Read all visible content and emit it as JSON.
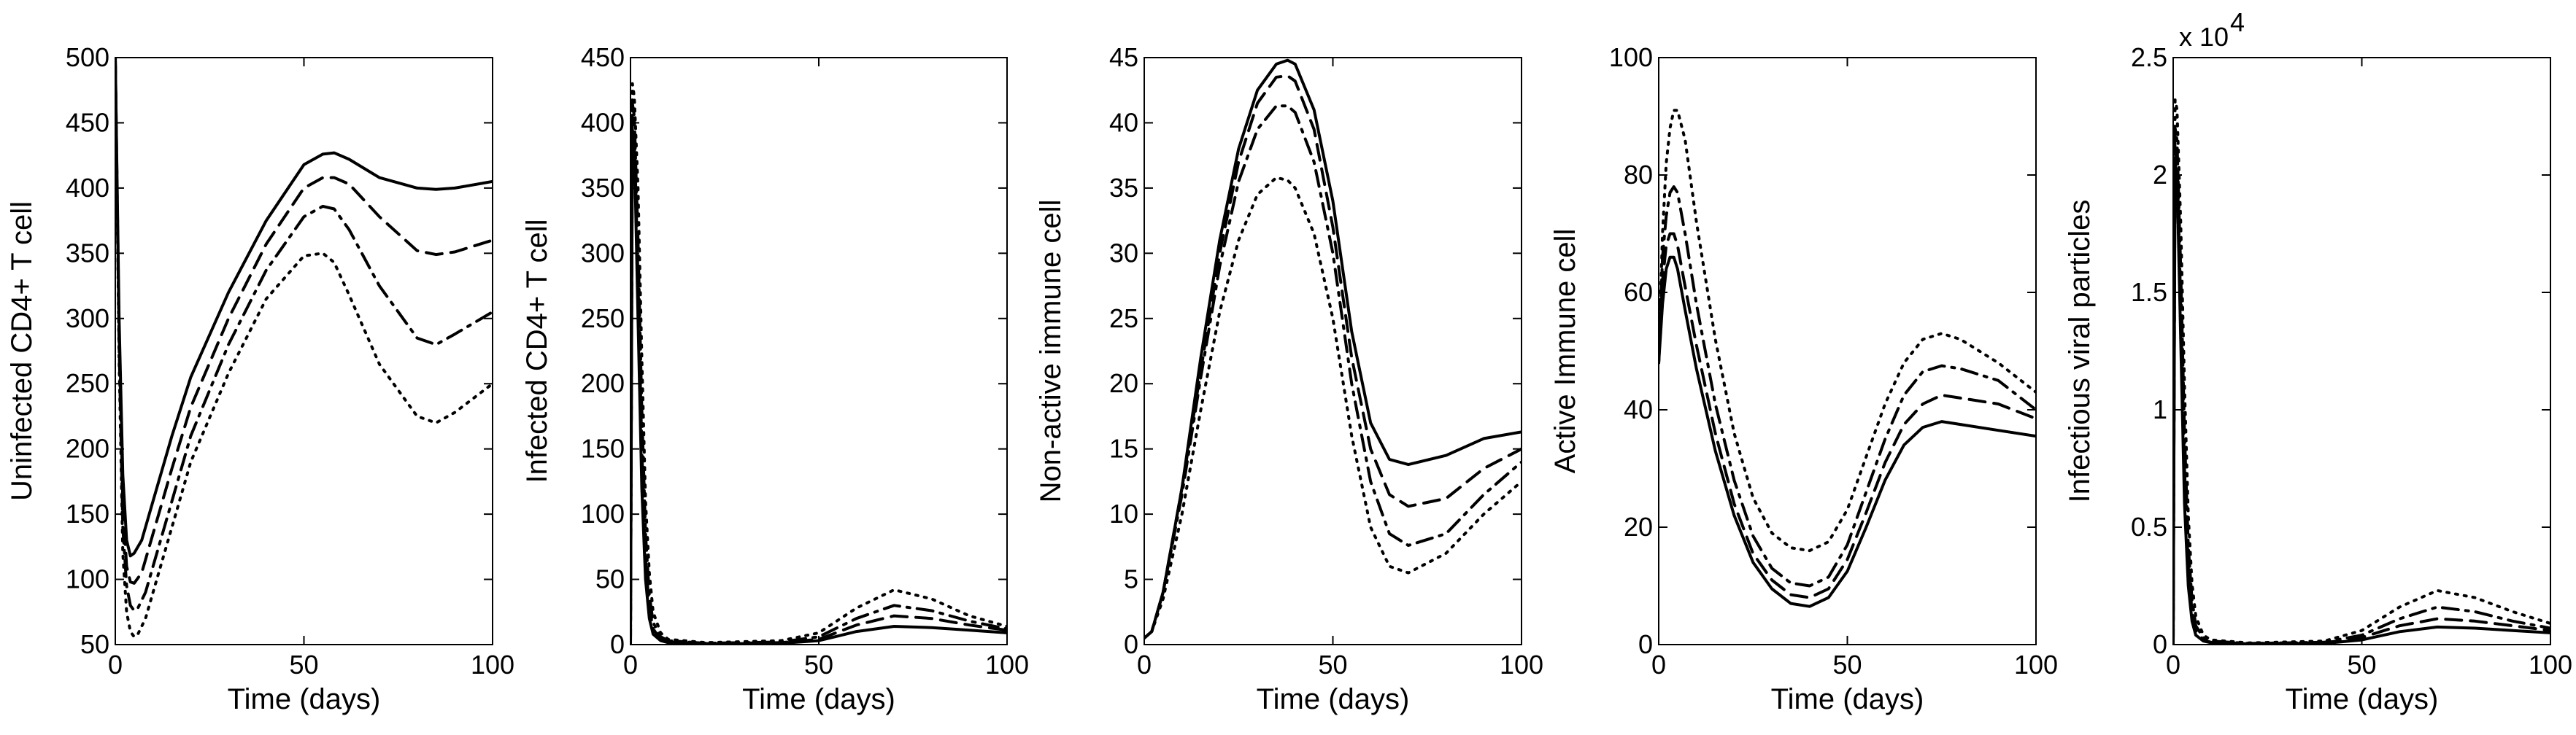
{
  "chart_data": [
    {
      "type": "line",
      "title": "",
      "xlabel": "Time (days)",
      "ylabel": "Uninfected CD4+ T cell",
      "xlim": [
        0,
        100
      ],
      "ylim": [
        50,
        500
      ],
      "xticks": [
        0,
        50,
        100
      ],
      "xtick_labels": [
        "0",
        "50",
        "100"
      ],
      "yticks": [
        50,
        100,
        150,
        200,
        250,
        300,
        350,
        400,
        450,
        500
      ],
      "ytick_labels": [
        "50",
        "100",
        "150",
        "200",
        "250",
        "300",
        "350",
        "400",
        "450",
        "500"
      ],
      "series": [
        {
          "name": "solid",
          "style": "solid",
          "x": [
            0,
            1,
            2,
            3,
            4,
            5,
            7,
            10,
            15,
            20,
            30,
            40,
            50,
            55,
            58,
            62,
            70,
            80,
            85,
            90,
            100
          ],
          "y": [
            500,
            300,
            180,
            130,
            118,
            120,
            130,
            160,
            210,
            255,
            320,
            375,
            418,
            426,
            427,
            422,
            408,
            400,
            399,
            400,
            405
          ]
        },
        {
          "name": "dashed",
          "style": "dashed",
          "x": [
            0,
            1,
            2,
            3,
            4,
            5,
            7,
            10,
            15,
            20,
            30,
            40,
            50,
            55,
            58,
            62,
            70,
            80,
            85,
            90,
            100
          ],
          "y": [
            500,
            290,
            160,
            110,
            98,
            97,
            105,
            135,
            185,
            232,
            300,
            357,
            400,
            408,
            408,
            403,
            378,
            352,
            349,
            351,
            360
          ]
        },
        {
          "name": "dashdot",
          "style": "dashdot",
          "x": [
            0,
            1,
            2,
            3,
            4,
            5,
            6,
            8,
            10,
            15,
            20,
            30,
            40,
            50,
            55,
            58,
            62,
            70,
            80,
            85,
            90,
            100
          ],
          "y": [
            500,
            280,
            140,
            95,
            80,
            76,
            78,
            90,
            110,
            160,
            210,
            280,
            337,
            378,
            386,
            384,
            368,
            325,
            285,
            280,
            288,
            305
          ]
        },
        {
          "name": "dotted",
          "style": "dotted",
          "x": [
            0,
            1,
            2,
            3,
            4,
            5,
            6,
            8,
            10,
            15,
            20,
            30,
            40,
            50,
            55,
            58,
            62,
            70,
            80,
            85,
            90,
            100
          ],
          "y": [
            500,
            270,
            120,
            75,
            60,
            56,
            58,
            70,
            90,
            140,
            190,
            258,
            315,
            348,
            350,
            343,
            318,
            265,
            225,
            220,
            228,
            250
          ]
        }
      ]
    },
    {
      "type": "line",
      "title": "",
      "xlabel": "Time (days)",
      "ylabel": "Infected CD4+ T cell",
      "xlim": [
        0,
        100
      ],
      "ylim": [
        0,
        450
      ],
      "xticks": [
        0,
        50,
        100
      ],
      "xtick_labels": [
        "0",
        "50",
        "100"
      ],
      "yticks": [
        0,
        50,
        100,
        150,
        200,
        250,
        300,
        350,
        400,
        450
      ],
      "ytick_labels": [
        "0",
        "50",
        "100",
        "150",
        "200",
        "250",
        "300",
        "350",
        "400",
        "450"
      ],
      "series": [
        {
          "name": "solid",
          "style": "solid",
          "x": [
            0,
            0.5,
            1,
            2,
            3,
            4,
            5,
            6,
            8,
            10,
            20,
            40,
            50,
            60,
            70,
            80,
            90,
            100
          ],
          "y": [
            0,
            395,
            385,
            250,
            120,
            50,
            20,
            8,
            3,
            1.5,
            0.5,
            1,
            3,
            10,
            14,
            13,
            11,
            9
          ]
        },
        {
          "name": "dashed",
          "style": "dashed",
          "x": [
            0,
            0.5,
            1,
            2,
            3,
            4,
            5,
            6,
            8,
            10,
            20,
            40,
            50,
            60,
            70,
            80,
            90,
            100
          ],
          "y": [
            0,
            405,
            395,
            280,
            150,
            65,
            28,
            12,
            4,
            2,
            0.8,
            1.5,
            4,
            15,
            22,
            20,
            15,
            11
          ]
        },
        {
          "name": "dashdot",
          "style": "dashdot",
          "x": [
            0,
            0.5,
            1,
            2,
            3,
            4,
            5,
            6,
            8,
            10,
            20,
            40,
            50,
            60,
            70,
            80,
            90,
            100
          ],
          "y": [
            0,
            415,
            405,
            310,
            180,
            85,
            38,
            17,
            6,
            3,
            1,
            2,
            6,
            20,
            30,
            26,
            18,
            12
          ]
        },
        {
          "name": "dotted",
          "style": "dotted",
          "x": [
            0,
            0.5,
            1,
            2,
            3,
            4,
            5,
            6,
            8,
            10,
            20,
            40,
            50,
            60,
            70,
            80,
            90,
            100
          ],
          "y": [
            0,
            430,
            420,
            350,
            220,
            110,
            55,
            25,
            9,
            4,
            1.5,
            3,
            9,
            28,
            42,
            35,
            22,
            14
          ]
        }
      ]
    },
    {
      "type": "line",
      "title": "",
      "xlabel": "Time (days)",
      "ylabel": "Non-active immune cell",
      "xlim": [
        0,
        100
      ],
      "ylim": [
        0,
        45
      ],
      "xticks": [
        0,
        50,
        100
      ],
      "xtick_labels": [
        "0",
        "50",
        "100"
      ],
      "yticks": [
        0,
        5,
        10,
        15,
        20,
        25,
        30,
        35,
        40,
        45
      ],
      "ytick_labels": [
        "0",
        "5",
        "10",
        "15",
        "20",
        "25",
        "30",
        "35",
        "40",
        "45"
      ],
      "series": [
        {
          "name": "solid",
          "style": "solid",
          "x": [
            0,
            2,
            5,
            10,
            15,
            20,
            25,
            30,
            35,
            38,
            40,
            45,
            50,
            55,
            60,
            65,
            70,
            80,
            90,
            100
          ],
          "y": [
            0.5,
            1,
            4,
            12,
            22,
            31,
            38,
            42.5,
            44.5,
            44.8,
            44.5,
            41,
            34,
            24,
            17,
            14.2,
            13.8,
            14.5,
            15.8,
            16.3
          ]
        },
        {
          "name": "dashed",
          "style": "dashed",
          "x": [
            0,
            2,
            5,
            10,
            15,
            20,
            25,
            30,
            35,
            38,
            40,
            45,
            50,
            55,
            60,
            65,
            70,
            80,
            90,
            100
          ],
          "y": [
            0.5,
            1,
            4,
            12,
            21,
            30,
            37,
            41.5,
            43.5,
            43.6,
            43.2,
            39.5,
            32,
            22,
            15,
            11.5,
            10.6,
            11.2,
            13.5,
            15
          ]
        },
        {
          "name": "dashdot",
          "style": "dashdot",
          "x": [
            0,
            2,
            5,
            10,
            15,
            20,
            25,
            30,
            35,
            38,
            40,
            45,
            50,
            55,
            60,
            65,
            70,
            80,
            90,
            100
          ],
          "y": [
            0.5,
            1,
            4,
            11.5,
            20.5,
            29,
            35.5,
            39.5,
            41.3,
            41.3,
            40.8,
            37,
            30,
            20,
            12.5,
            8.5,
            7.6,
            8.5,
            11.5,
            14
          ]
        },
        {
          "name": "dotted",
          "style": "dotted",
          "x": [
            0,
            2,
            5,
            10,
            15,
            20,
            25,
            30,
            35,
            38,
            40,
            45,
            50,
            55,
            60,
            65,
            70,
            80,
            90,
            100
          ],
          "y": [
            0.5,
            1,
            3.5,
            10,
            18,
            25.5,
            31,
            34.5,
            35.8,
            35.6,
            35,
            31.5,
            25,
            16,
            9,
            6,
            5.5,
            7,
            10,
            12.5
          ]
        }
      ]
    },
    {
      "type": "line",
      "title": "",
      "xlabel": "Time (days)",
      "ylabel": "Active Immune cell",
      "xlim": [
        0,
        100
      ],
      "ylim": [
        0,
        100
      ],
      "xticks": [
        0,
        50,
        100
      ],
      "xtick_labels": [
        "0",
        "50",
        "100"
      ],
      "yticks": [
        0,
        20,
        40,
        60,
        80,
        100
      ],
      "ytick_labels": [
        "0",
        "20",
        "40",
        "60",
        "80",
        "100"
      ],
      "series": [
        {
          "name": "solid",
          "style": "solid",
          "x": [
            0,
            1,
            2,
            3,
            4,
            5,
            7,
            10,
            15,
            20,
            25,
            30,
            35,
            40,
            45,
            50,
            55,
            60,
            65,
            70,
            75,
            80,
            90,
            100
          ],
          "y": [
            48,
            58,
            64,
            66,
            66,
            64,
            57,
            47,
            33,
            22,
            14,
            9.5,
            7,
            6.5,
            8,
            12.5,
            20,
            28,
            34,
            37,
            38,
            37.5,
            36.5,
            35.5
          ]
        },
        {
          "name": "dashed",
          "style": "dashed",
          "x": [
            0,
            1,
            2,
            3,
            4,
            5,
            7,
            10,
            15,
            20,
            25,
            30,
            35,
            40,
            45,
            50,
            55,
            60,
            65,
            70,
            75,
            80,
            90,
            100
          ],
          "y": [
            48,
            62,
            68,
            70,
            70,
            68,
            61,
            51,
            36,
            24,
            15.5,
            11,
            8.5,
            8,
            9.5,
            14.5,
            22.5,
            31,
            37.5,
            41,
            42.5,
            42,
            41,
            38.5
          ]
        },
        {
          "name": "dashdot",
          "style": "dashdot",
          "x": [
            0,
            1,
            2,
            3,
            4,
            5,
            7,
            10,
            15,
            20,
            25,
            30,
            35,
            40,
            45,
            50,
            55,
            60,
            65,
            70,
            75,
            80,
            90,
            100
          ],
          "y": [
            48,
            66,
            73,
            77,
            78,
            77,
            70,
            58,
            41,
            28,
            18.5,
            13,
            10.5,
            10,
            11.5,
            17,
            26,
            35,
            42.5,
            46.5,
            47.5,
            47,
            45,
            40
          ]
        },
        {
          "name": "dotted",
          "style": "dotted",
          "x": [
            0,
            1,
            2,
            3,
            4,
            5,
            7,
            10,
            15,
            20,
            25,
            30,
            35,
            40,
            45,
            50,
            55,
            60,
            65,
            70,
            75,
            80,
            90,
            100
          ],
          "y": [
            48,
            70,
            82,
            88,
            91,
            91,
            86,
            72,
            52,
            36,
            25,
            19,
            16.5,
            16,
            17.5,
            23,
            32,
            41,
            48,
            52,
            53,
            52,
            48,
            43
          ]
        }
      ]
    },
    {
      "type": "line",
      "title": "",
      "xlabel": "Time (days)",
      "ylabel": "Infectious viral particles",
      "scale_label": "x 10",
      "scale_exponent": "4",
      "xlim": [
        0,
        100
      ],
      "ylim": [
        0,
        2.5
      ],
      "xticks": [
        0,
        50,
        100
      ],
      "xtick_labels": [
        "0",
        "50",
        "100"
      ],
      "yticks": [
        0,
        0.5,
        1,
        1.5,
        2,
        2.5
      ],
      "ytick_labels": [
        "0",
        "0.5",
        "1",
        "1.5",
        "2",
        "2.5"
      ],
      "series": [
        {
          "name": "solid",
          "style": "solid",
          "x": [
            0,
            0.5,
            1,
            2,
            3,
            4,
            5,
            6,
            8,
            10,
            20,
            40,
            50,
            60,
            70,
            80,
            90,
            100
          ],
          "y": [
            0,
            2.05,
            2.0,
            1.3,
            0.6,
            0.25,
            0.1,
            0.04,
            0.015,
            0.008,
            0.003,
            0.005,
            0.02,
            0.055,
            0.075,
            0.07,
            0.06,
            0.05
          ]
        },
        {
          "name": "dashed",
          "style": "dashed",
          "x": [
            0,
            0.5,
            1,
            2,
            3,
            4,
            5,
            6,
            8,
            10,
            20,
            40,
            50,
            60,
            70,
            80,
            90,
            100
          ],
          "y": [
            0,
            2.12,
            2.08,
            1.45,
            0.75,
            0.33,
            0.14,
            0.06,
            0.02,
            0.01,
            0.004,
            0.007,
            0.03,
            0.08,
            0.11,
            0.1,
            0.08,
            0.06
          ]
        },
        {
          "name": "dashdot",
          "style": "dashdot",
          "x": [
            0,
            0.5,
            1,
            2,
            3,
            4,
            5,
            6,
            8,
            10,
            20,
            40,
            50,
            60,
            70,
            80,
            90,
            100
          ],
          "y": [
            0,
            2.2,
            2.15,
            1.6,
            0.9,
            0.42,
            0.19,
            0.08,
            0.03,
            0.015,
            0.005,
            0.01,
            0.04,
            0.11,
            0.16,
            0.14,
            0.1,
            0.07
          ]
        },
        {
          "name": "dotted",
          "style": "dotted",
          "x": [
            0,
            0.5,
            1,
            2,
            3,
            4,
            5,
            6,
            8,
            10,
            20,
            40,
            50,
            60,
            70,
            80,
            90,
            100
          ],
          "y": [
            0,
            2.32,
            2.28,
            1.8,
            1.1,
            0.55,
            0.26,
            0.12,
            0.04,
            0.02,
            0.007,
            0.015,
            0.06,
            0.16,
            0.23,
            0.2,
            0.14,
            0.09
          ]
        }
      ]
    }
  ]
}
